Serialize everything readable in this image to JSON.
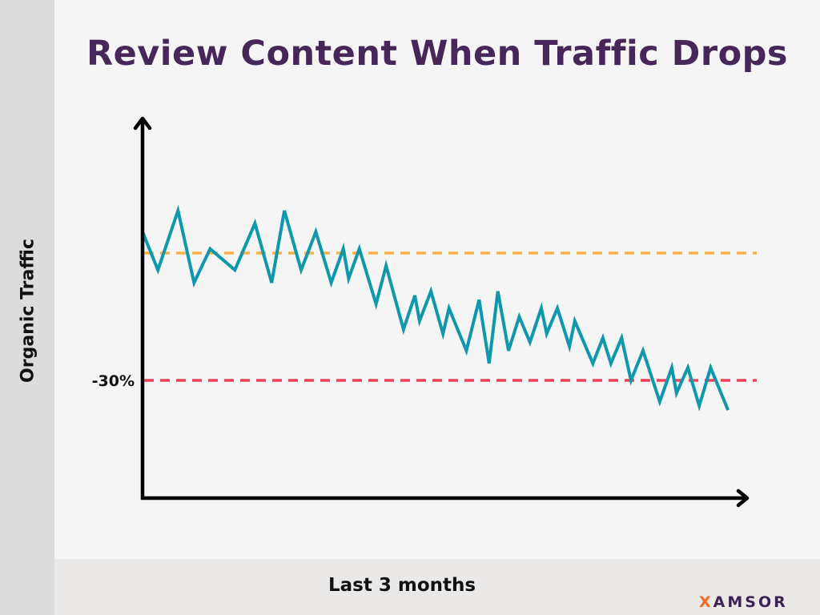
{
  "chart_data": {
    "type": "line",
    "title": "Review Content When Traffic Drops",
    "xlabel": "Last 3 months",
    "ylabel": "Organic Traffic",
    "xlim": [
      0,
      90
    ],
    "ylim": [
      -58,
      31
    ],
    "grid": false,
    "reference_lines": [
      {
        "y": 0,
        "label": "",
        "color": "#f8b24a",
        "style": "dashed"
      },
      {
        "y": -30,
        "label": "-30%",
        "color": "#f2425a",
        "style": "dashed"
      }
    ],
    "series": [
      {
        "color": "#0f97ac",
        "x": [
          0,
          2.3,
          5.3,
          7.7,
          10.1,
          13.8,
          16.8,
          19.3,
          21.2,
          23.7,
          25.9,
          28.2,
          30.0,
          30.8,
          32.4,
          34.9,
          36.4,
          39.0,
          40.7,
          41.4,
          43.1,
          44.9,
          45.8,
          48.4,
          50.3,
          51.8,
          53.1,
          54.7,
          56.3,
          57.9,
          59.6,
          60.4,
          62.0,
          63.8,
          64.6,
          67.3,
          68.8,
          70.0,
          71.6,
          73.0,
          74.8,
          77.3,
          79.1,
          79.8,
          81.5,
          83.2,
          84.9,
          87.5
        ],
        "y": [
          5,
          -4,
          10,
          -7,
          1,
          -4,
          7,
          -7,
          10,
          -4,
          5,
          -7,
          1,
          -6,
          1,
          -12,
          -3,
          -18,
          -10,
          -16,
          -9,
          -19,
          -13,
          -23,
          -11,
          -26,
          -9,
          -23,
          -15,
          -21,
          -13,
          -19,
          -13,
          -22,
          -16,
          -26,
          -20,
          -26,
          -20,
          -30,
          -23,
          -35,
          -27,
          -33,
          -27,
          -36,
          -27,
          -37
        ]
      }
    ]
  },
  "logo": {
    "text": "XAMSOR",
    "accent_letter": "X",
    "rest": "AMSOR"
  },
  "colors": {
    "title": "#47275a",
    "line": "#0f97ac",
    "baseline": "#f8b24a",
    "threshold": "#f2425a"
  }
}
